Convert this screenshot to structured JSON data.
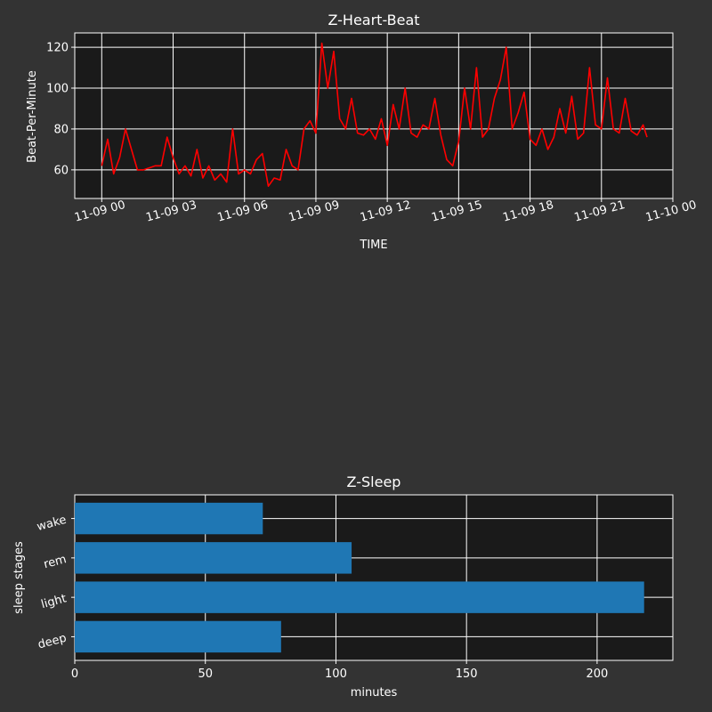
{
  "chart_data": [
    {
      "type": "line",
      "title": "Z-Heart-Beat",
      "xlabel": "TIME",
      "ylabel": "Beat-Per-Minute",
      "x_range": [
        "11-08 22:52",
        "11-10 00:00"
      ],
      "ylim": [
        46,
        127
      ],
      "x_ticks": [
        "11-09 00",
        "11-09 03",
        "11-09 06",
        "11-09 09",
        "11-09 12",
        "11-09 15",
        "11-09 18",
        "11-09 21",
        "11-10 00"
      ],
      "y_ticks": [
        60,
        80,
        100,
        120
      ],
      "grid": true,
      "series": [
        {
          "color": "#ff0000",
          "x": [
            "00:00",
            "00:15",
            "00:30",
            "00:45",
            "01:00",
            "01:15",
            "01:30",
            "01:45",
            "02:00",
            "02:15",
            "02:30",
            "02:45",
            "03:00",
            "03:15",
            "03:30",
            "03:45",
            "04:00",
            "04:15",
            "04:30",
            "04:45",
            "05:00",
            "05:15",
            "05:30",
            "05:45",
            "06:00",
            "06:15",
            "06:30",
            "06:45",
            "07:00",
            "07:15",
            "07:30",
            "07:45",
            "08:00",
            "08:15",
            "08:30",
            "08:45",
            "09:00",
            "09:15",
            "09:30",
            "09:45",
            "10:00",
            "10:15",
            "10:30",
            "10:45",
            "11:00",
            "11:15",
            "11:30",
            "11:45",
            "12:00",
            "12:15",
            "12:30",
            "12:45",
            "13:00",
            "13:15",
            "13:30",
            "13:45",
            "14:00",
            "14:15",
            "14:30",
            "14:45",
            "15:00",
            "15:15",
            "15:30",
            "15:45",
            "16:00",
            "16:15",
            "16:30",
            "16:45",
            "17:00",
            "17:15",
            "17:30",
            "17:45",
            "18:00",
            "18:15",
            "18:30",
            "18:45",
            "19:00",
            "19:15",
            "19:30",
            "19:45",
            "20:00",
            "20:15",
            "20:30",
            "20:45",
            "21:00",
            "21:15",
            "21:30",
            "21:45",
            "22:00",
            "22:15",
            "22:30",
            "22:45",
            "22:55"
          ],
          "values": [
            62,
            75,
            58,
            66,
            80,
            70,
            60,
            60,
            61,
            62,
            62,
            76,
            66,
            58,
            62,
            57,
            70,
            56,
            62,
            55,
            58,
            54,
            80,
            58,
            60,
            58,
            65,
            68,
            52,
            56,
            55,
            70,
            62,
            60,
            80,
            84,
            78,
            122,
            100,
            118,
            85,
            80,
            95,
            78,
            77,
            80,
            75,
            85,
            72,
            92,
            80,
            100,
            78,
            76,
            82,
            80,
            95,
            77,
            65,
            62,
            74,
            100,
            80,
            110,
            76,
            80,
            95,
            104,
            120,
            80,
            88,
            98,
            75,
            72,
            80,
            70,
            76,
            90,
            78,
            96,
            75,
            78,
            110,
            82,
            80,
            105,
            80,
            78,
            95,
            79,
            77,
            82,
            76
          ]
        }
      ]
    },
    {
      "type": "bar",
      "orientation": "horizontal",
      "title": "Z-Sleep",
      "xlabel": "minutes",
      "ylabel": "sleep stages",
      "categories": [
        "deep",
        "light",
        "rem",
        "wake"
      ],
      "values": [
        79,
        218,
        106,
        72
      ],
      "xlim": [
        0,
        229
      ],
      "x_ticks": [
        0,
        50,
        100,
        150,
        200
      ],
      "bar_color": "#1f77b4",
      "grid": true
    }
  ]
}
